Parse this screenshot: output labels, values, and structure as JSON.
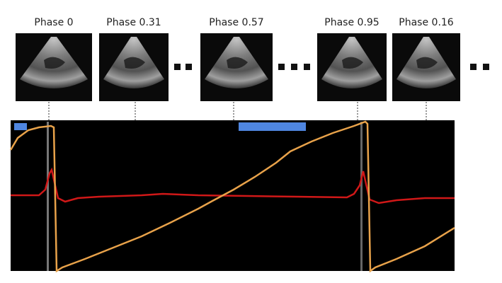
{
  "frames": [
    {
      "label": "Phase 0"
    },
    {
      "label": "Phase 0.31"
    },
    {
      "label": "Phase 0.57"
    },
    {
      "label": "Phase 0.95"
    },
    {
      "label": "Phase 0.16"
    }
  ]
}
